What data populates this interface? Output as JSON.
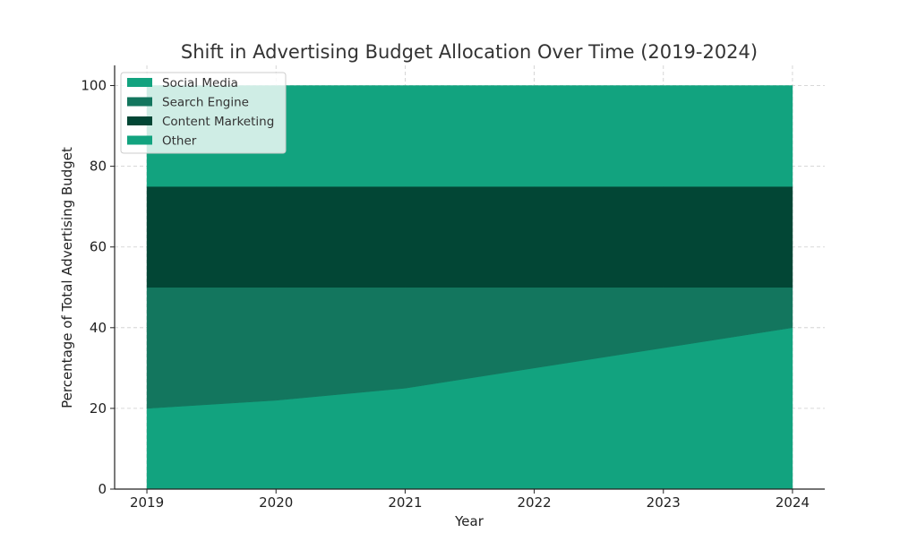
{
  "chart_data": {
    "type": "area",
    "stacked": true,
    "title": "Shift in Advertising Budget Allocation Over Time (2019-2024)",
    "xlabel": "Year",
    "ylabel": "Percentage of Total Advertising Budget",
    "x": [
      2019,
      2020,
      2021,
      2022,
      2023,
      2024
    ],
    "xlim": [
      2018.75,
      2024.25
    ],
    "ylim": [
      0,
      105
    ],
    "yticks": [
      0,
      20,
      40,
      60,
      80,
      100
    ],
    "grid": true,
    "legend_position": "top-left",
    "series": [
      {
        "name": "Social Media",
        "color": "#12a37f",
        "values": [
          20,
          22,
          25,
          30,
          35,
          40
        ]
      },
      {
        "name": "Search Engine",
        "color": "#13765e",
        "values": [
          30,
          28,
          25,
          20,
          15,
          10
        ]
      },
      {
        "name": "Content Marketing",
        "color": "#024635",
        "values": [
          25,
          25,
          25,
          25,
          25,
          25
        ]
      },
      {
        "name": "Other",
        "color": "#12a37f",
        "values": [
          25,
          25,
          25,
          25,
          25,
          25
        ]
      }
    ]
  }
}
